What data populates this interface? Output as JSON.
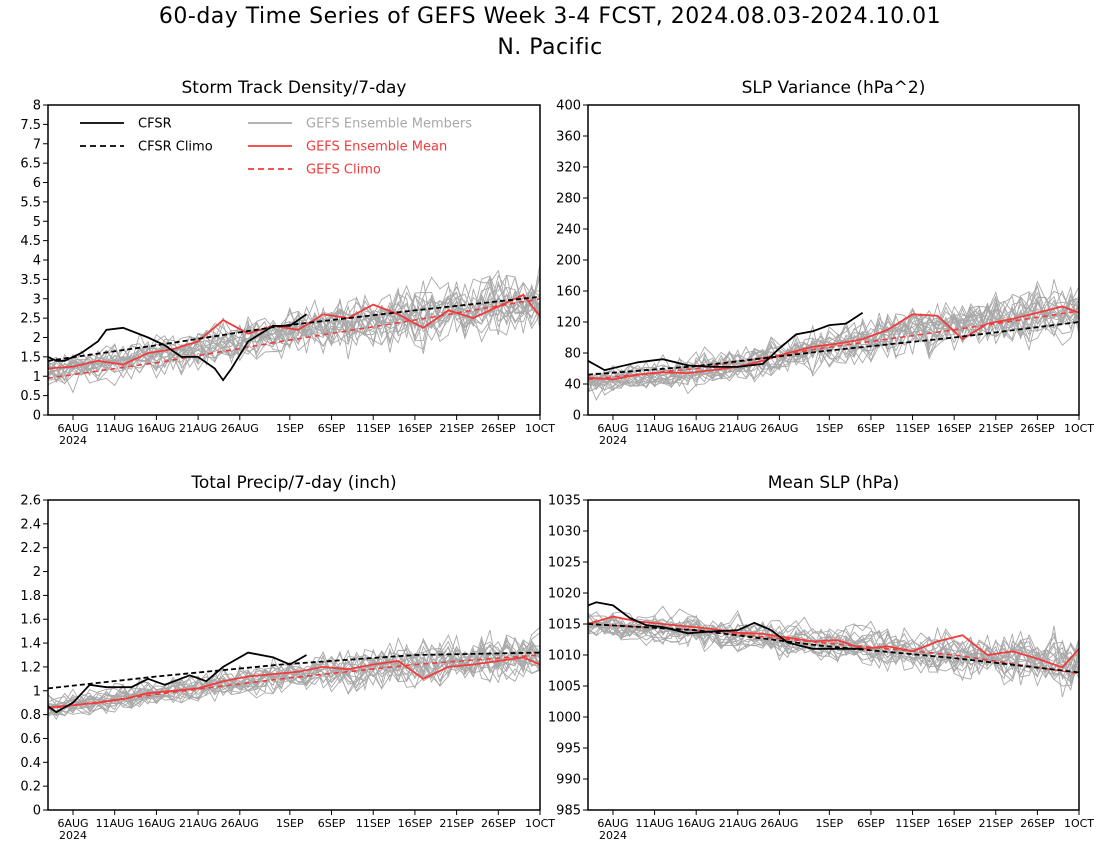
{
  "page": {
    "title_line1": "60-day Time Series of GEFS Week 3-4 FCST, 2024.08.03-2024.10.01",
    "title_line2": "N. Pacific"
  },
  "colors": {
    "cfsr": "#000000",
    "members": "#a8a8a8",
    "ensemble_mean": "#f03c3c",
    "gefs_climo": "#f03c3c"
  },
  "x_axis": {
    "start": "2024-08-03",
    "end": "2024-10-01",
    "ticks": [
      {
        "date": "2024-08-06",
        "label": "6AUG"
      },
      {
        "date": "2024-08-11",
        "label": "11AUG"
      },
      {
        "date": "2024-08-16",
        "label": "16AUG"
      },
      {
        "date": "2024-08-21",
        "label": "21AUG"
      },
      {
        "date": "2024-08-26",
        "label": "26AUG"
      },
      {
        "date": "2024-09-01",
        "label": "1SEP"
      },
      {
        "date": "2024-09-06",
        "label": "6SEP"
      },
      {
        "date": "2024-09-11",
        "label": "11SEP"
      },
      {
        "date": "2024-09-16",
        "label": "16SEP"
      },
      {
        "date": "2024-09-21",
        "label": "21SEP"
      },
      {
        "date": "2024-09-26",
        "label": "26SEP"
      },
      {
        "date": "2024-10-01",
        "label": "1OCT"
      }
    ],
    "year_label": "2024"
  },
  "legend": {
    "cfsr": "CFSR",
    "cfsr_climo": "CFSR Climo",
    "members": "GEFS Ensemble Members",
    "ensemble_mean": "GEFS Ensemble Mean",
    "gefs_climo": "GEFS Climo"
  },
  "chart_data": [
    {
      "type": "line",
      "title": "Storm Track Density/7-day",
      "ylim": [
        0,
        8
      ],
      "yticks": [
        "0",
        "0.5",
        "1",
        "1.5",
        "2",
        "2.5",
        "3",
        "3.5",
        "4",
        "4.5",
        "5",
        "5.5",
        "6",
        "6.5",
        "7",
        "7.5",
        "8"
      ],
      "legend_placement": "top-left",
      "member_count": 21,
      "cfsr": {
        "x": [
          "2024-08-03",
          "2024-08-04",
          "2024-08-05",
          "2024-08-07",
          "2024-08-09",
          "2024-08-10",
          "2024-08-12",
          "2024-08-15",
          "2024-08-17",
          "2024-08-19",
          "2024-08-21",
          "2024-08-23",
          "2024-08-24",
          "2024-08-25",
          "2024-08-27",
          "2024-08-30",
          "2024-09-01",
          "2024-09-03"
        ],
        "y": [
          1.5,
          1.4,
          1.4,
          1.6,
          1.9,
          2.2,
          2.25,
          2.0,
          1.8,
          1.5,
          1.5,
          1.2,
          0.9,
          1.2,
          1.9,
          2.3,
          2.3,
          2.6
        ]
      },
      "cfsr_climo": {
        "x": [
          "2024-08-03",
          "2024-08-16",
          "2024-08-31",
          "2024-09-16",
          "2024-10-01"
        ],
        "y": [
          1.4,
          1.8,
          2.3,
          2.7,
          3.05
        ]
      },
      "gefs_climo": {
        "x": [
          "2024-08-03",
          "2024-08-16",
          "2024-08-31",
          "2024-09-16",
          "2024-10-01"
        ],
        "y": [
          0.95,
          1.35,
          1.9,
          2.45,
          3.0
        ]
      },
      "ensemble_mean": {
        "x": [
          "2024-08-03",
          "2024-08-06",
          "2024-08-09",
          "2024-08-12",
          "2024-08-15",
          "2024-08-18",
          "2024-08-21",
          "2024-08-24",
          "2024-08-27",
          "2024-08-30",
          "2024-09-02",
          "2024-09-05",
          "2024-09-08",
          "2024-09-11",
          "2024-09-14",
          "2024-09-17",
          "2024-09-20",
          "2024-09-23",
          "2024-09-26",
          "2024-09-29",
          "2024-10-01"
        ],
        "y": [
          1.2,
          1.25,
          1.4,
          1.3,
          1.6,
          1.7,
          1.9,
          2.45,
          2.1,
          2.3,
          2.2,
          2.6,
          2.5,
          2.85,
          2.6,
          2.25,
          2.7,
          2.5,
          2.8,
          3.1,
          2.55
        ]
      },
      "member_baseline": {
        "x": [
          "2024-08-03",
          "2024-08-16",
          "2024-08-31",
          "2024-09-16",
          "2024-10-01"
        ],
        "y": [
          1.1,
          1.5,
          2.1,
          2.55,
          2.9
        ]
      },
      "member_spread": 0.9
    },
    {
      "type": "line",
      "title": "SLP Variance (hPa^2)",
      "ylim": [
        0,
        400
      ],
      "yticks": [
        "0",
        "40",
        "80",
        "120",
        "160",
        "200",
        "240",
        "280",
        "320",
        "360",
        "400"
      ],
      "member_count": 21,
      "cfsr": {
        "x": [
          "2024-08-03",
          "2024-08-05",
          "2024-08-09",
          "2024-08-12",
          "2024-08-15",
          "2024-08-18",
          "2024-08-21",
          "2024-08-24",
          "2024-08-26",
          "2024-08-28",
          "2024-08-30",
          "2024-09-01",
          "2024-09-03",
          "2024-09-05"
        ],
        "y": [
          70,
          58,
          68,
          72,
          64,
          62,
          62,
          66,
          86,
          104,
          108,
          116,
          118,
          132
        ]
      },
      "cfsr_climo": {
        "x": [
          "2024-08-03",
          "2024-08-16",
          "2024-08-31",
          "2024-09-16",
          "2024-10-01"
        ],
        "y": [
          52,
          63,
          82,
          100,
          120
        ]
      },
      "gefs_climo": {
        "x": [
          "2024-08-03",
          "2024-08-16",
          "2024-08-31",
          "2024-09-16",
          "2024-10-01"
        ],
        "y": [
          46,
          60,
          86,
          110,
          134
        ]
      },
      "ensemble_mean": {
        "x": [
          "2024-08-03",
          "2024-08-06",
          "2024-08-09",
          "2024-08-12",
          "2024-08-15",
          "2024-08-18",
          "2024-08-21",
          "2024-08-24",
          "2024-08-27",
          "2024-08-30",
          "2024-09-02",
          "2024-09-05",
          "2024-09-08",
          "2024-09-11",
          "2024-09-14",
          "2024-09-17",
          "2024-09-20",
          "2024-09-23",
          "2024-09-26",
          "2024-09-29",
          "2024-10-01"
        ],
        "y": [
          48,
          46,
          52,
          55,
          54,
          58,
          62,
          70,
          80,
          88,
          92,
          98,
          110,
          130,
          128,
          98,
          118,
          124,
          132,
          140,
          132
        ]
      },
      "member_baseline": {
        "x": [
          "2024-08-03",
          "2024-08-16",
          "2024-08-31",
          "2024-09-16",
          "2024-10-01"
        ],
        "y": [
          45,
          58,
          88,
          118,
          138
        ]
      },
      "member_spread": 40
    },
    {
      "type": "line",
      "title": "Total Precip/7-day (inch)",
      "ylim": [
        0,
        2.6
      ],
      "yticks": [
        "0",
        "0.2",
        "0.4",
        "0.6",
        "0.8",
        "1",
        "1.2",
        "1.4",
        "1.6",
        "1.8",
        "2",
        "2.2",
        "2.4",
        "2.6"
      ],
      "member_count": 21,
      "cfsr": {
        "x": [
          "2024-08-03",
          "2024-08-04",
          "2024-08-06",
          "2024-08-08",
          "2024-08-10",
          "2024-08-13",
          "2024-08-15",
          "2024-08-17",
          "2024-08-20",
          "2024-08-22",
          "2024-08-24",
          "2024-08-27",
          "2024-08-30",
          "2024-09-01",
          "2024-09-03"
        ],
        "y": [
          0.87,
          0.82,
          0.9,
          1.05,
          1.03,
          1.03,
          1.1,
          1.05,
          1.13,
          1.08,
          1.2,
          1.32,
          1.28,
          1.22,
          1.3
        ]
      },
      "cfsr_climo": {
        "x": [
          "2024-08-03",
          "2024-08-16",
          "2024-08-31",
          "2024-09-16",
          "2024-10-01"
        ],
        "y": [
          1.02,
          1.12,
          1.22,
          1.3,
          1.32
        ]
      },
      "gefs_climo": {
        "x": [
          "2024-08-03",
          "2024-08-16",
          "2024-08-31",
          "2024-09-16",
          "2024-10-01"
        ],
        "y": [
          0.85,
          0.97,
          1.1,
          1.22,
          1.3
        ]
      },
      "ensemble_mean": {
        "x": [
          "2024-08-03",
          "2024-08-06",
          "2024-08-09",
          "2024-08-12",
          "2024-08-15",
          "2024-08-18",
          "2024-08-21",
          "2024-08-24",
          "2024-08-27",
          "2024-08-30",
          "2024-09-02",
          "2024-09-05",
          "2024-09-08",
          "2024-09-11",
          "2024-09-14",
          "2024-09-17",
          "2024-09-20",
          "2024-09-23",
          "2024-09-26",
          "2024-09-29",
          "2024-10-01"
        ],
        "y": [
          0.86,
          0.88,
          0.9,
          0.93,
          0.98,
          1.0,
          1.02,
          1.08,
          1.12,
          1.14,
          1.16,
          1.2,
          1.18,
          1.22,
          1.25,
          1.1,
          1.2,
          1.22,
          1.25,
          1.28,
          1.22
        ]
      },
      "member_baseline": {
        "x": [
          "2024-08-03",
          "2024-08-16",
          "2024-08-31",
          "2024-09-16",
          "2024-10-01"
        ],
        "y": [
          0.85,
          0.98,
          1.12,
          1.22,
          1.3
        ]
      },
      "member_spread": 0.22
    },
    {
      "type": "line",
      "title": "Mean SLP (hPa)",
      "ylim": [
        985,
        1035
      ],
      "yticks": [
        "985",
        "990",
        "995",
        "1000",
        "1005",
        "1010",
        "1015",
        "1020",
        "1025",
        "1030",
        "1035"
      ],
      "member_count": 21,
      "cfsr": {
        "x": [
          "2024-08-03",
          "2024-08-04",
          "2024-08-06",
          "2024-08-08",
          "2024-08-10",
          "2024-08-12",
          "2024-08-15",
          "2024-08-18",
          "2024-08-21",
          "2024-08-23",
          "2024-08-25",
          "2024-08-27",
          "2024-08-30",
          "2024-09-02",
          "2024-09-05"
        ],
        "y": [
          1018,
          1018.5,
          1018,
          1016,
          1014.8,
          1014.5,
          1013.5,
          1013.8,
          1014,
          1015.2,
          1014,
          1012,
          1011,
          1011,
          1011
        ]
      },
      "cfsr_climo": {
        "x": [
          "2024-08-03",
          "2024-08-16",
          "2024-08-31",
          "2024-09-16",
          "2024-10-01"
        ],
        "y": [
          1015,
          1014,
          1011.5,
          1009.5,
          1007.2
        ]
      },
      "gefs_climo": {
        "x": [
          "2024-08-03",
          "2024-08-16",
          "2024-08-31",
          "2024-09-16",
          "2024-10-01"
        ],
        "y": [
          1015,
          1014,
          1012,
          1010,
          1007
        ]
      },
      "ensemble_mean": {
        "x": [
          "2024-08-03",
          "2024-08-06",
          "2024-08-09",
          "2024-08-12",
          "2024-08-15",
          "2024-08-18",
          "2024-08-21",
          "2024-08-24",
          "2024-08-27",
          "2024-08-30",
          "2024-09-02",
          "2024-09-05",
          "2024-09-08",
          "2024-09-11",
          "2024-09-14",
          "2024-09-17",
          "2024-09-20",
          "2024-09-23",
          "2024-09-26",
          "2024-09-29",
          "2024-10-01"
        ],
        "y": [
          1015,
          1016.2,
          1015.4,
          1015,
          1014.6,
          1014.2,
          1013.6,
          1013.4,
          1012.8,
          1012.2,
          1012.4,
          1011,
          1011.4,
          1010.6,
          1012.2,
          1013.2,
          1010,
          1010.6,
          1009.4,
          1008,
          1011
        ]
      },
      "member_baseline": {
        "x": [
          "2024-08-03",
          "2024-08-16",
          "2024-08-31",
          "2024-09-16",
          "2024-10-01"
        ],
        "y": [
          1015,
          1014,
          1012,
          1010,
          1009
        ]
      },
      "member_spread": 4.5
    }
  ]
}
